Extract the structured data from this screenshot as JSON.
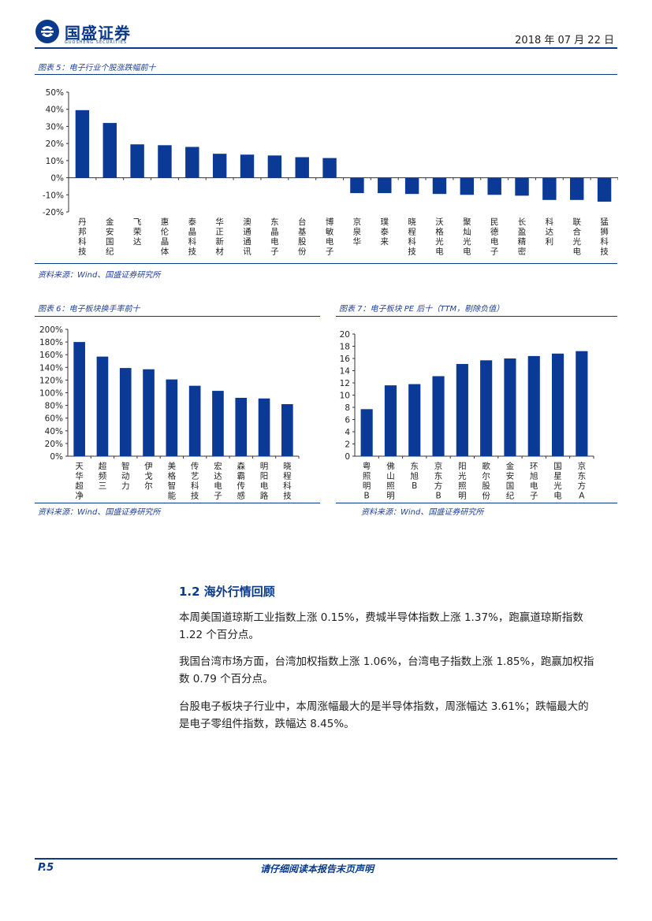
{
  "header": {
    "brand": "国盛证券",
    "brand_sub": "GUOSHENG SECURITIES",
    "date": "2018 年 07 月 22 日"
  },
  "fig5": {
    "title": "图表 5：电子行业个股涨跌幅前十",
    "source": "资料来源：Wind、国盛证券研究所",
    "chart_data": {
      "type": "bar",
      "categories": [
        "丹邦科技",
        "金安国纪",
        "飞荣达",
        "惠伦晶体",
        "泰晶科技",
        "华正新材",
        "澳通通讯",
        "东晶电子",
        "台基股份",
        "博敏电子",
        "京泉华",
        "璞泰来",
        "晓程科技",
        "沃格光电",
        "聚灿光电",
        "民德电子",
        "长盈精密",
        "科达利",
        "联合光电",
        "猛狮科技"
      ],
      "values": [
        39.5,
        32,
        19.5,
        19,
        18,
        14,
        13.5,
        13,
        12,
        11.5,
        -9,
        -9,
        -9.5,
        -9.5,
        -10,
        -10,
        -10.5,
        -13,
        -13,
        -14
      ],
      "yticks": [
        "50%",
        "40%",
        "30%",
        "20%",
        "10%",
        "0%",
        "-10%",
        "-20%"
      ],
      "ylim": [
        -20,
        50
      ]
    }
  },
  "fig6": {
    "title": "图表 6：电子板块换手率前十",
    "source": "资料来源：Wind、国盛证券研究所",
    "chart_data": {
      "type": "bar",
      "categories": [
        "天华超净",
        "超频三",
        "智动力",
        "伊戈尔",
        "美格智能",
        "传艺科技",
        "宏达电子",
        "森霸传感",
        "明阳电路",
        "晓程科技"
      ],
      "values": [
        180,
        157,
        139,
        137,
        121,
        111,
        103,
        92,
        91,
        82
      ],
      "yticks": [
        "200%",
        "180%",
        "160%",
        "140%",
        "120%",
        "100%",
        "80%",
        "60%",
        "40%",
        "20%",
        "0%"
      ],
      "ylim": [
        0,
        200
      ]
    }
  },
  "fig7": {
    "title": "图表 7：电子板块 PE 后十（TTM，剔除负值）",
    "source": "资料来源：Wind、国盛证券研究所",
    "chart_data": {
      "type": "bar",
      "categories": [
        "粤照明B",
        "佛山照明",
        "东旭B",
        "京东方B",
        "阳光照明",
        "歌尔股份",
        "金安国纪",
        "环旭电子",
        "国星光电",
        "京东方A"
      ],
      "values": [
        7.7,
        11.6,
        11.8,
        13.1,
        15.1,
        15.7,
        16.0,
        16.4,
        16.8,
        17.2
      ],
      "yticks": [
        "20",
        "18",
        "16",
        "14",
        "12",
        "10",
        "8",
        "6",
        "4",
        "2",
        "0"
      ],
      "ylim": [
        0,
        20
      ]
    }
  },
  "section": {
    "title": "1.2 海外行情回顾",
    "p1_l1": "本周美国道琼斯工业指数上涨 0.15%，费城半导体指数上涨 1.37%，跑赢道琼斯指数",
    "p1_l2": "1.22 个百分点。",
    "p2_l1": "我国台湾市场方面，台湾加权指数上涨 1.06%，台湾电子指数上涨 1.85%，跑赢加权指",
    "p2_l2": "数 0.79 个百分点。",
    "p3_l1": "台股电子板块子行业中，本周涨幅最大的是半导体指数，周涨幅达 3.61%；跌幅最大的",
    "p3_l2": "是电子零组件指数，跌幅达 8.45%。"
  },
  "footer": {
    "page": "P.5",
    "notice": "请仔细阅读本报告末页声明"
  },
  "colors": {
    "bar": "#0b3a96",
    "accent": "#0b3a8c"
  }
}
